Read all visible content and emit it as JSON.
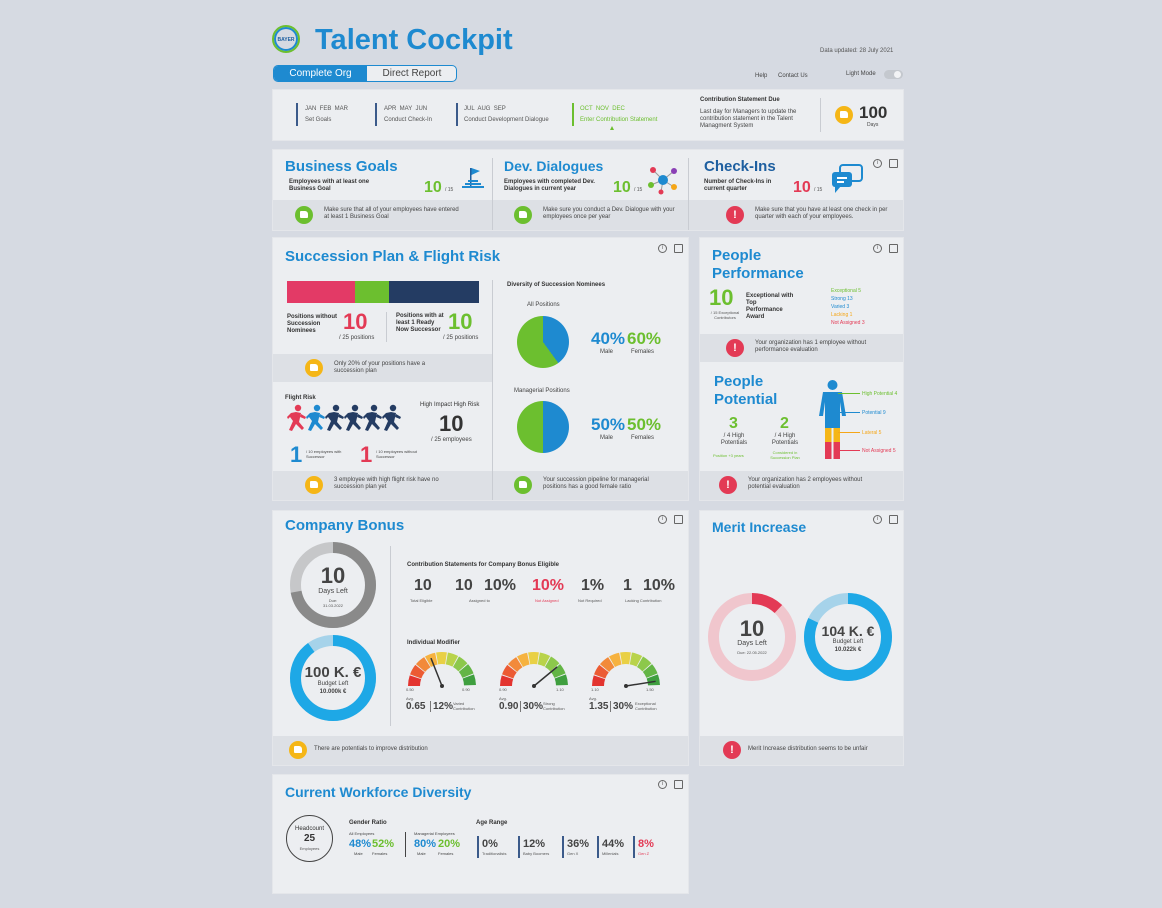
{
  "header": {
    "logo_text": "BAYER",
    "title": "Talent Cockpit",
    "data_updated": "Data updated: 28 July 2021",
    "tabs": [
      "Complete Org",
      "Direct Report"
    ],
    "links": [
      "Help",
      "Contact Us"
    ],
    "mode_label": "Light Mode"
  },
  "timeline": {
    "quarters": [
      {
        "months": "JAN  FEB  MAR",
        "task": "Set Goals"
      },
      {
        "months": "APR  MAY  JUN",
        "task": "Conduct Check-In"
      },
      {
        "months": "JUL  AUG  SEP",
        "task": "Conduct Development Dialogue"
      },
      {
        "months": "OCT  NOV  DEC",
        "task": "Enter Contribution Statement"
      }
    ],
    "due_title": "Contribution Statement Due",
    "due_text": "Last day for Managers to update the contribution statement in the Talent Managment System",
    "days_value": "100",
    "days_label": "Days"
  },
  "kpis": [
    {
      "title": "Business Goals",
      "subtitle": "Employees with at least one Business Goal",
      "value": "10",
      "total": "/ 15",
      "msg": "Make sure that all of your employees have entered at least 1 Business Goal"
    },
    {
      "title": "Dev. Dialogues",
      "subtitle": "Employees with completed Dev. Dialogues in current year",
      "value": "10",
      "total": "/ 15",
      "msg": "Make sure you conduct a Dev. Dialogue with your employees once per year"
    },
    {
      "title": "Check-Ins",
      "subtitle": "Number of Check-Ins in current quarter",
      "value": "10",
      "total": "/ 15",
      "msg": "Make sure that you have at least one check in per quarter with each of your employees."
    }
  ],
  "succession": {
    "title": "Succession Plan & Flight Risk",
    "without_label": "Positions without Succession Nominees",
    "without_value": "10",
    "without_total": "/ 25 positions",
    "with_label": "Positions with at least 1 Ready Now Successor",
    "with_value": "10",
    "with_total": "/ 25 positions",
    "msg1": "Only 20% of your positions have a succession plan",
    "flight_title": "Flight Risk",
    "high_impact_label": "High Impact High Risk",
    "high_impact_value": "10",
    "high_impact_total": "/ 25 employees",
    "with_succ_value": "1",
    "with_succ_label": "/ 10 employees with Successor",
    "without_succ_value": "1",
    "without_succ_label": "/ 10 employees without Successor",
    "msg2": "3 employee with high flight risk have no succession plan yet",
    "diversity_title": "Diversity of Succession Nominees",
    "all_positions": "All Positions",
    "all_male": "40%",
    "all_female": "60%",
    "managerial": "Managerial Positions",
    "mgr_male": "50%",
    "mgr_female": "50%",
    "male_label": "Male",
    "female_label": "Females",
    "msg3": "Your succession pipeline for managerial positions has a good female ratio"
  },
  "performance": {
    "title1": "People",
    "title2": "Performance",
    "value": "10",
    "value_label": "/ 15 Exceptional Contributors",
    "award": "Exceptional with Top Performance Award",
    "legend": [
      {
        "label": "Exceptional 5",
        "color": "#6cbf2f"
      },
      {
        "label": "Strong 13",
        "color": "#1e8ad0"
      },
      {
        "label": "Varied 3",
        "color": "#1e8ad0"
      },
      {
        "label": "Lacking 1",
        "color": "#f5a617"
      },
      {
        "label": "Not Assigned 3",
        "color": "#e33a55"
      }
    ],
    "msg": "Your organization has 1 employee without performance evaluation"
  },
  "potential": {
    "title1": "People",
    "title2": "Potential",
    "v1": "3",
    "v1_label": "/ 4 High Potentials",
    "v1_note": "Position +3 years",
    "v2": "2",
    "v2_label": "/ 4 High Potentials",
    "v2_note": "Considered in Succession Plan",
    "legend": [
      {
        "label": "High Potential 4",
        "color": "#6cbf2f"
      },
      {
        "label": "Potential 9",
        "color": "#1e8ad0"
      },
      {
        "label": "Lateral 5",
        "color": "#f5a617"
      },
      {
        "label": "Not Assigned 5",
        "color": "#e33a55"
      }
    ],
    "msg": "Your organization has 2 employees without potential evaluation"
  },
  "bonus": {
    "title": "Company Bonus",
    "days_value": "10",
    "days_label": "Days Left",
    "due": "Due: 31.03.2022",
    "days_fraction": 0.72,
    "budget_value": "100 K. €",
    "budget_label": "Budget Left",
    "budget_sub": "10.000k €",
    "budget_fraction": 0.9,
    "cs_title": "Contribution Statements for Company Bonus Eligible",
    "stats": [
      {
        "value": "10",
        "label": "Total Eligible",
        "color": "#444"
      },
      {
        "value": "10",
        "label": "Assigned to",
        "color": "#444"
      },
      {
        "value": "10%",
        "label": "",
        "color": "#444"
      },
      {
        "value": "10%",
        "label": "Not Assigned",
        "color": "#e33a55"
      },
      {
        "value": "1%",
        "label": "Not Required",
        "color": "#444"
      },
      {
        "value": "1",
        "label": "Lacking Contribution",
        "color": "#444"
      },
      {
        "value": "10%",
        "label": "",
        "color": "#444"
      }
    ],
    "modifier_title": "Individual Modifier",
    "gauges": [
      {
        "min": "0.50",
        "max": "0.90",
        "avg_label": "Avg.",
        "avg": "0.65",
        "pct": "12%",
        "cat": "Varied Contribution",
        "needle": 0.38
      },
      {
        "min": "0.90",
        "max": "1.10",
        "avg_label": "Avg.",
        "avg": "0.90",
        "pct": "30%",
        "cat": "Strong Contribution",
        "needle": 0.78
      },
      {
        "min": "1.10",
        "max": "1.50",
        "avg_label": "Avg.",
        "avg": "1.35",
        "pct": "30%",
        "cat": "Exceptional Contribution",
        "needle": 0.95
      }
    ],
    "msg": "There are potentials to improve distribution"
  },
  "merit": {
    "title": "Merit Increase",
    "days_value": "10",
    "days_label": "Days Left",
    "due": "Due: 22.05.2022",
    "days_fraction": 0.12,
    "budget_value": "104 K. €",
    "budget_label": "Budget Left",
    "budget_sub": "10.022k €",
    "budget_fraction": 0.82,
    "msg": "Merit Increase distribution seems to be unfair"
  },
  "workforce": {
    "title": "Current Workforce Diversity",
    "headcount_label": "Headcount",
    "headcount": "25",
    "employees": "Employees",
    "gender_title": "Gender Ratio",
    "all_emp": "All Employees",
    "all_male": "48%",
    "all_female": "52%",
    "mgr_emp": "Managerial Employees",
    "mgr_male": "80%",
    "mgr_female": "20%",
    "male": "Male",
    "female": "Females",
    "age_title": "Age Range",
    "ages": [
      {
        "value": "0%",
        "label": "Traditionalists",
        "color": "#444"
      },
      {
        "value": "12%",
        "label": "Baby Boomers",
        "color": "#444"
      },
      {
        "value": "36%",
        "label": "Gen X",
        "color": "#444"
      },
      {
        "value": "44%",
        "label": "Millenials",
        "color": "#444"
      },
      {
        "value": "8%",
        "label": "Gen Z",
        "color": "#e33a55"
      }
    ]
  }
}
